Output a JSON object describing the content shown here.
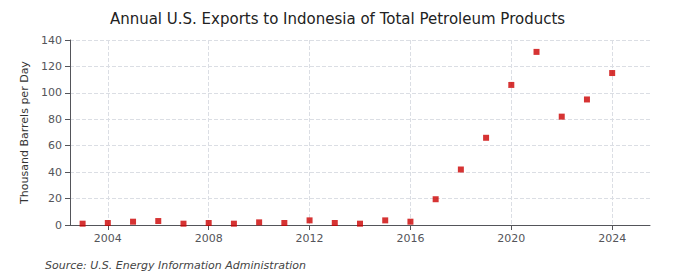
{
  "chart_data": {
    "type": "scatter",
    "title": "Annual U.S. Exports to Indonesia of Total Petroleum Products",
    "ylabel": "Thousand Barrels per Day",
    "annotations": [
      "Source: U.S. Energy Information Administration"
    ],
    "x": [
      2003,
      2004,
      2005,
      2006,
      2007,
      2008,
      2009,
      2010,
      2011,
      2012,
      2013,
      2014,
      2015,
      2016,
      2017,
      2018,
      2019,
      2020,
      2021,
      2022,
      2023,
      2024
    ],
    "values": [
      1.0,
      1.5,
      2.5,
      3.0,
      1.0,
      1.5,
      1.0,
      2.0,
      1.5,
      3.5,
      1.5,
      1.0,
      3.5,
      2.5,
      19.5,
      42.0,
      66.0,
      106.0,
      131.0,
      82.0,
      95.0,
      115.0
    ],
    "color": "#cc0000",
    "marker": "square",
    "xlim": [
      2002.5,
      2025.5
    ],
    "xticks": [
      2004,
      2008,
      2012,
      2016,
      2020,
      2024
    ],
    "ylim": [
      0,
      140
    ],
    "yticks": [
      0,
      20,
      40,
      60,
      80,
      100,
      120,
      140
    ],
    "grid": true
  }
}
